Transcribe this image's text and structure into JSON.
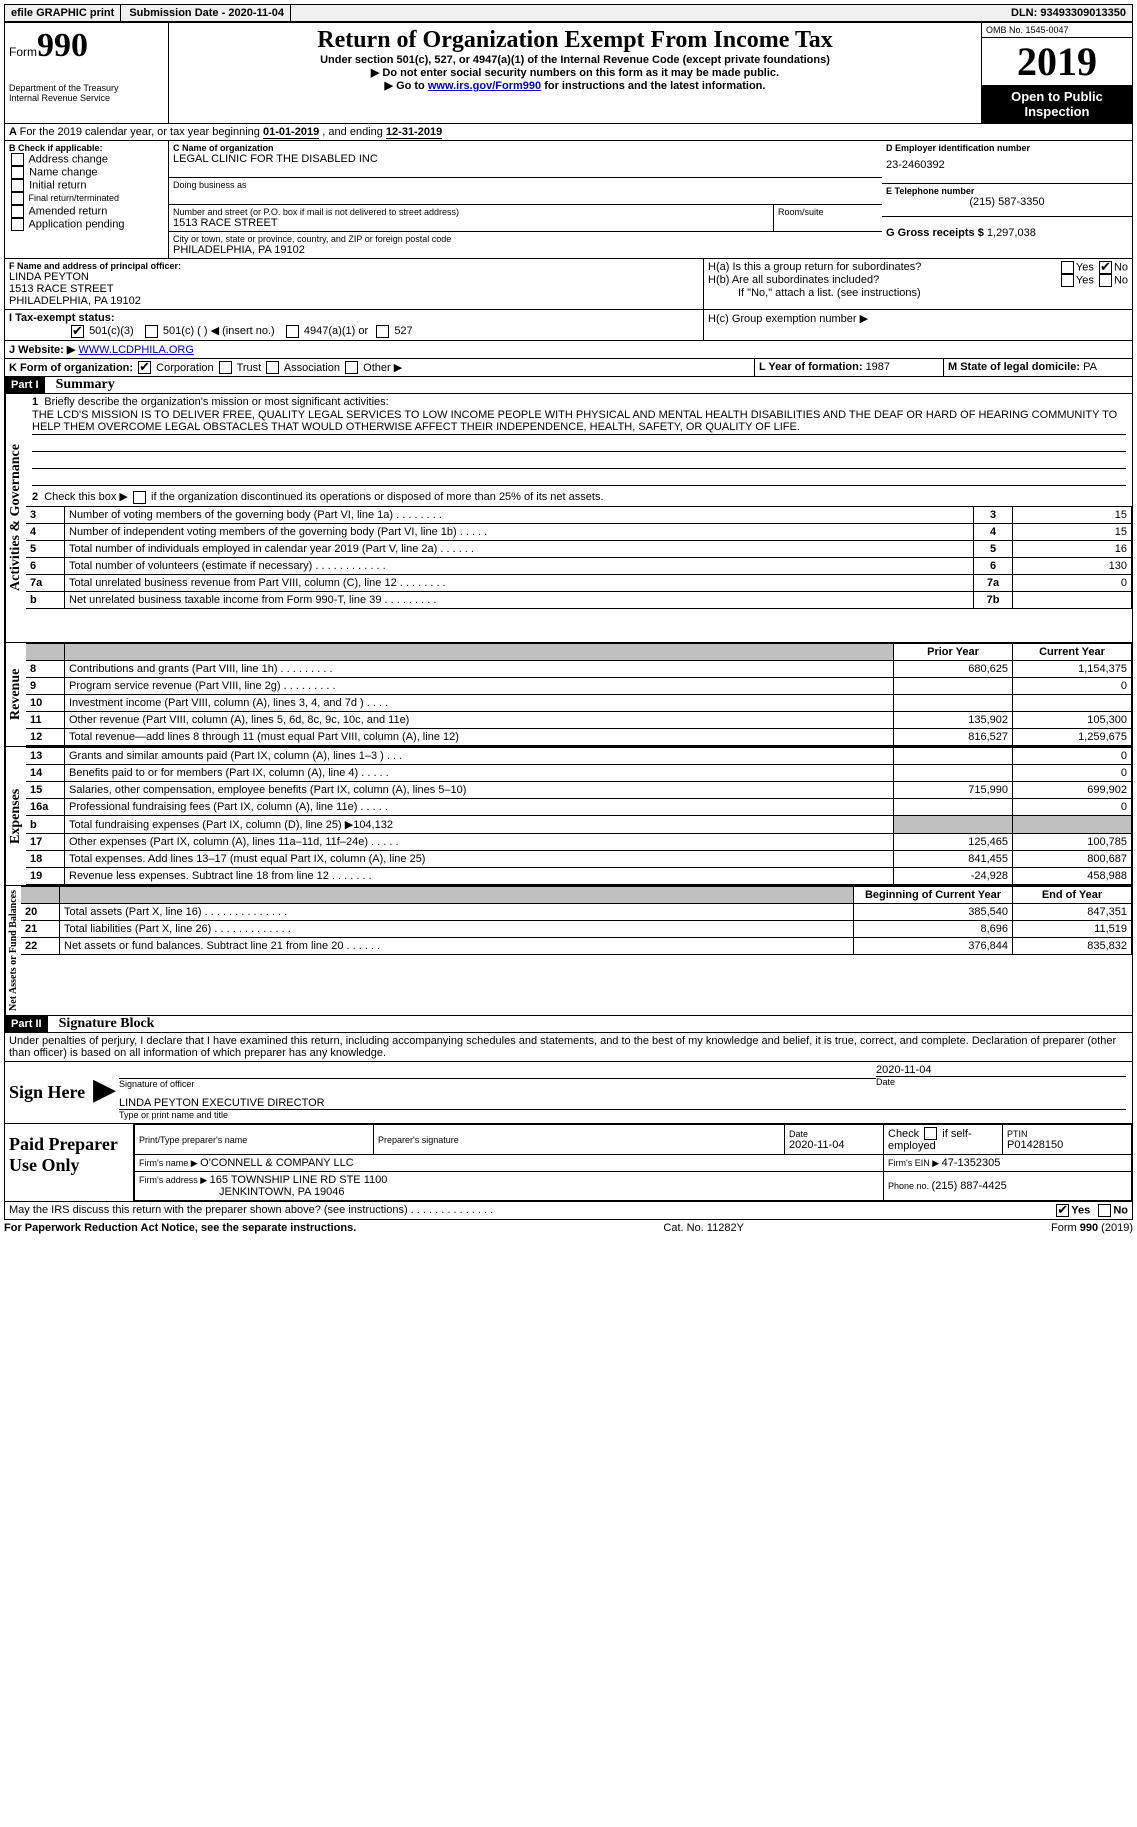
{
  "topbar": {
    "efile": "efile GRAPHIC",
    "print": "print",
    "sub_date_label": "Submission Date - ",
    "sub_date": "2020-11-04",
    "dln_label": "DLN: ",
    "dln": "93493309013350"
  },
  "header": {
    "form_prefix": "Form",
    "form_num": "990",
    "dept1": "Department of the Treasury",
    "dept2": "Internal Revenue Service",
    "title": "Return of Organization Exempt From Income Tax",
    "sub1": "Under section 501(c), 527, or 4947(a)(1) of the Internal Revenue Code (except private foundations)",
    "sub2": "▶ Do not enter social security numbers on this form as it may be made public.",
    "sub3_pre": "▶ Go to ",
    "sub3_link": "www.irs.gov/Form990",
    "sub3_post": " for instructions and the latest information.",
    "omb": "OMB No. 1545-0047",
    "year": "2019",
    "public": "Open to Public Inspection"
  },
  "line_a": {
    "text_pre": "For the 2019 calendar year, or tax year beginning ",
    "begin": "01-01-2019",
    "mid": " , and ending ",
    "end": "12-31-2019"
  },
  "box_b": {
    "label": "B Check if applicable:",
    "opts": [
      "Address change",
      "Name change",
      "Initial return",
      "Final return/terminated",
      "Amended return",
      "Application pending"
    ]
  },
  "box_c": {
    "label": "C Name of organization",
    "name": "LEGAL CLINIC FOR THE DISABLED INC",
    "dba_label": "Doing business as",
    "addr_label": "Number and street (or P.O. box if mail is not delivered to street address)",
    "room_label": "Room/suite",
    "addr": "1513 RACE STREET",
    "city_label": "City or town, state or province, country, and ZIP or foreign postal code",
    "city": "PHILADELPHIA, PA  19102"
  },
  "box_d": {
    "label": "D Employer identification number",
    "ein": "23-2460392"
  },
  "box_e": {
    "label": "E Telephone number",
    "tel": "(215) 587-3350"
  },
  "box_g": {
    "label": "G Gross receipts $ ",
    "val": "1,297,038"
  },
  "box_f": {
    "label": "F Name and address of principal officer:",
    "name": "LINDA PEYTON",
    "addr1": "1513 RACE STREET",
    "addr2": "PHILADELPHIA, PA  19102"
  },
  "box_h": {
    "ha": "H(a)  Is this a group return for subordinates?",
    "hb": "H(b)  Are all subordinates included?",
    "hb_note": "If \"No,\" attach a list. (see instructions)",
    "hc": "H(c)  Group exemption number ▶",
    "yes": "Yes",
    "no": "No"
  },
  "box_i": {
    "label": "I   Tax-exempt status:",
    "o1": "501(c)(3)",
    "o2": "501(c) (  ) ◀ (insert no.)",
    "o3": "4947(a)(1) or",
    "o4": "527"
  },
  "box_j": {
    "label": "J   Website: ▶ ",
    "url": "WWW.LCDPHILA.ORG"
  },
  "box_k": {
    "label": "K Form of organization:",
    "o1": "Corporation",
    "o2": "Trust",
    "o3": "Association",
    "o4": "Other ▶"
  },
  "box_l": {
    "label": "L Year of formation: ",
    "val": "1987"
  },
  "box_m": {
    "label": "M State of legal domicile: ",
    "val": "PA"
  },
  "part1": {
    "hdr": "Part I",
    "title": "Summary"
  },
  "summary": {
    "q1": "Briefly describe the organization's mission or most significant activities:",
    "mission": "THE LCD'S MISSION IS TO DELIVER FREE, QUALITY LEGAL SERVICES TO LOW INCOME PEOPLE WITH PHYSICAL AND MENTAL HEALTH DISABILITIES AND THE DEAF OR HARD OF HEARING COMMUNITY TO HELP THEM OVERCOME LEGAL OBSTACLES THAT WOULD OTHERWISE AFFECT THEIR INDEPENDENCE, HEALTH, SAFETY, OR QUALITY OF LIFE.",
    "q2": "Check this box ▶    if the organization discontinued its operations or disposed of more than 25% of its net assets.",
    "rows_ag": [
      {
        "n": "3",
        "t": "Number of voting members of the governing body (Part VI, line 1a)   .    .    .    .    .    .    .    .",
        "box": "3",
        "v": "15"
      },
      {
        "n": "4",
        "t": "Number of independent voting members of the governing body (Part VI, line 1b)   .    .    .    .    .",
        "box": "4",
        "v": "15"
      },
      {
        "n": "5",
        "t": "Total number of individuals employed in calendar year 2019 (Part V, line 2a)   .    .    .    .    .    .",
        "box": "5",
        "v": "16"
      },
      {
        "n": "6",
        "t": "Total number of volunteers (estimate if necessary)   .    .    .    .    .    .    .    .    .    .    .    .",
        "box": "6",
        "v": "130"
      },
      {
        "n": "7a",
        "t": "Total unrelated business revenue from Part VIII, column (C), line 12   .    .    .    .    .    .    .    .",
        "box": "7a",
        "v": "0"
      },
      {
        "n": "b",
        "t": "Net unrelated business taxable income from Form 990-T, line 39   .    .    .    .    .    .    .    .    .",
        "box": "7b",
        "v": ""
      }
    ],
    "prior_hdr": "Prior Year",
    "curr_hdr": "Current Year",
    "rows_rev": [
      {
        "n": "8",
        "t": "Contributions and grants (Part VIII, line 1h)   .    .    .    .    .    .    .    .    .",
        "p": "680,625",
        "c": "1,154,375"
      },
      {
        "n": "9",
        "t": "Program service revenue (Part VIII, line 2g)   .    .    .    .    .    .    .    .    .",
        "p": "",
        "c": "0"
      },
      {
        "n": "10",
        "t": "Investment income (Part VIII, column (A), lines 3, 4, and 7d )   .    .    .    .",
        "p": "",
        "c": ""
      },
      {
        "n": "11",
        "t": "Other revenue (Part VIII, column (A), lines 5, 6d, 8c, 9c, 10c, and 11e)",
        "p": "135,902",
        "c": "105,300"
      },
      {
        "n": "12",
        "t": "Total revenue—add lines 8 through 11 (must equal Part VIII, column (A), line 12)",
        "p": "816,527",
        "c": "1,259,675"
      }
    ],
    "rows_exp": [
      {
        "n": "13",
        "t": "Grants and similar amounts paid (Part IX, column (A), lines 1–3 )   .    .    .",
        "p": "",
        "c": "0"
      },
      {
        "n": "14",
        "t": "Benefits paid to or for members (Part IX, column (A), line 4)   .    .    .    .    .",
        "p": "",
        "c": "0"
      },
      {
        "n": "15",
        "t": "Salaries, other compensation, employee benefits (Part IX, column (A), lines 5–10)",
        "p": "715,990",
        "c": "699,902"
      },
      {
        "n": "16a",
        "t": "Professional fundraising fees (Part IX, column (A), line 11e)   .    .    .    .    .",
        "p": "",
        "c": "0"
      },
      {
        "n": "b",
        "t": "Total fundraising expenses (Part IX, column (D), line 25) ▶104,132",
        "p": "shaded",
        "c": "shaded"
      },
      {
        "n": "17",
        "t": "Other expenses (Part IX, column (A), lines 11a–11d, 11f–24e)   .    .    .    .    .",
        "p": "125,465",
        "c": "100,785"
      },
      {
        "n": "18",
        "t": "Total expenses. Add lines 13–17 (must equal Part IX, column (A), line 25)",
        "p": "841,455",
        "c": "800,687"
      },
      {
        "n": "19",
        "t": "Revenue less expenses. Subtract line 18 from line 12   .    .    .    .    .    .    .",
        "p": "-24,928",
        "c": "458,988"
      }
    ],
    "bcy_hdr": "Beginning of Current Year",
    "eoy_hdr": "End of Year",
    "rows_na": [
      {
        "n": "20",
        "t": "Total assets (Part X, line 16)   .    .    .    .    .    .    .    .    .    .    .    .    .    .",
        "p": "385,540",
        "c": "847,351"
      },
      {
        "n": "21",
        "t": "Total liabilities (Part X, line 26)   .    .    .    .    .    .    .    .    .    .    .    .    .",
        "p": "8,696",
        "c": "11,519"
      },
      {
        "n": "22",
        "t": "Net assets or fund balances. Subtract line 21 from line 20   .    .    .    .    .    .",
        "p": "376,844",
        "c": "835,832"
      }
    ],
    "vert_ag": "Activities & Governance",
    "vert_rev": "Revenue",
    "vert_exp": "Expenses",
    "vert_na": "Net Assets or Fund Balances"
  },
  "part2": {
    "hdr": "Part II",
    "title": "Signature Block",
    "perjury": "Under penalties of perjury, I declare that I have examined this return, including accompanying schedules and statements, and to the best of my knowledge and belief, it is true, correct, and complete. Declaration of preparer (other than officer) is based on all information of which preparer has any knowledge.",
    "sign_here": "Sign Here",
    "sig_officer": "Signature of officer",
    "sig_date": "Date",
    "sig_date_val": "2020-11-04",
    "officer_name": "LINDA PEYTON  EXECUTIVE DIRECTOR",
    "officer_label": "Type or print name and title",
    "paid_prep": "Paid Preparer Use Only",
    "prep_name_label": "Print/Type preparer's name",
    "prep_sig_label": "Preparer's signature",
    "prep_date_label": "Date",
    "prep_date": "2020-11-04",
    "self_emp": "Check      if self-employed",
    "ptin_label": "PTIN",
    "ptin": "P01428150",
    "firm_name_label": "Firm's name    ▶ ",
    "firm_name": "O'CONNELL & COMPANY LLC",
    "firm_ein_label": "Firm's EIN ▶ ",
    "firm_ein": "47-1352305",
    "firm_addr_label": "Firm's address ▶ ",
    "firm_addr1": "165 TOWNSHIP LINE RD STE 1100",
    "firm_addr2": "JENKINTOWN, PA  19046",
    "firm_phone_label": "Phone no. ",
    "firm_phone": "(215) 887-4425",
    "discuss": "May the IRS discuss this return with the preparer shown above? (see instructions)   .    .    .    .    .    .    .    .    .    .    .    .    .    .",
    "yes": "Yes",
    "no": "No"
  },
  "footer": {
    "left": "For Paperwork Reduction Act Notice, see the separate instructions.",
    "mid": "Cat. No. 11282Y",
    "right_pre": "Form ",
    "right_num": "990",
    "right_post": " (2019)"
  }
}
